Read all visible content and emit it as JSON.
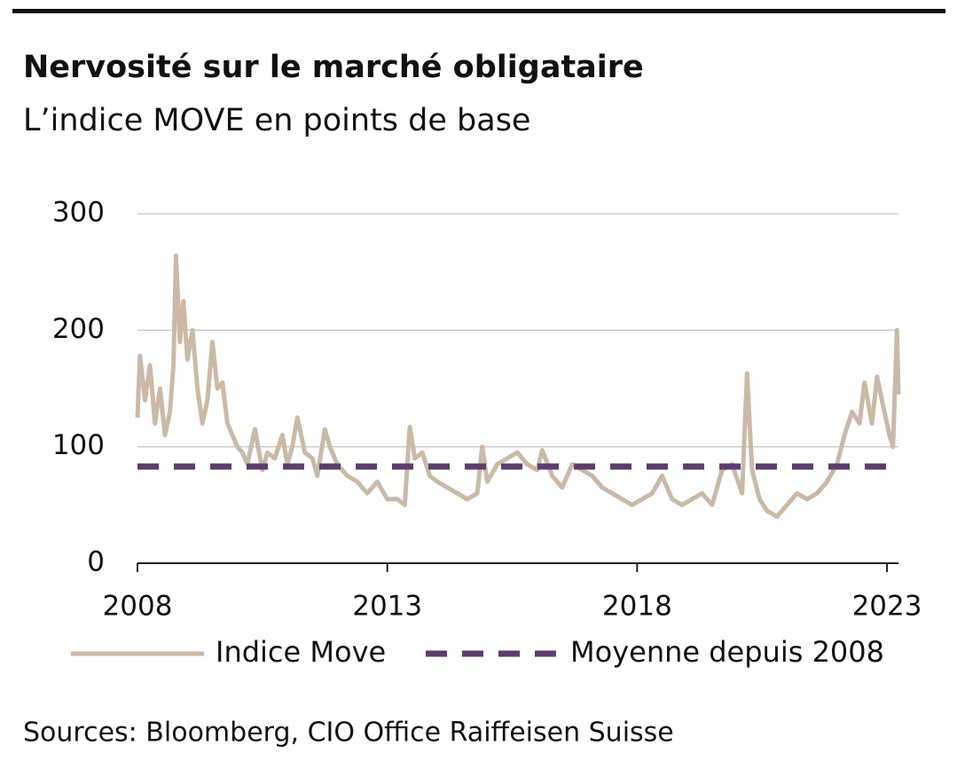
{
  "chart_data": {
    "type": "line",
    "title": "Nervosité sur le marché obligataire",
    "subtitle": "L’indice MOVE en points de base",
    "source": "Sources: Bloomberg, CIO Office Raiffeisen Suisse",
    "x": [
      2008.0,
      2008.05,
      2008.15,
      2008.25,
      2008.35,
      2008.45,
      2008.55,
      2008.65,
      2008.72,
      2008.77,
      2008.85,
      2008.92,
      2009.0,
      2009.1,
      2009.2,
      2009.3,
      2009.4,
      2009.5,
      2009.6,
      2009.7,
      2009.8,
      2009.9,
      2010.0,
      2010.1,
      2010.2,
      2010.35,
      2010.5,
      2010.6,
      2010.75,
      2010.9,
      2011.0,
      2011.1,
      2011.2,
      2011.35,
      2011.5,
      2011.6,
      2011.75,
      2011.85,
      2012.0,
      2012.2,
      2012.4,
      2012.6,
      2012.8,
      2013.0,
      2013.2,
      2013.35,
      2013.45,
      2013.55,
      2013.7,
      2013.85,
      2014.0,
      2014.2,
      2014.4,
      2014.6,
      2014.8,
      2014.9,
      2015.0,
      2015.2,
      2015.4,
      2015.6,
      2015.8,
      2016.0,
      2016.1,
      2016.3,
      2016.5,
      2016.7,
      2016.9,
      2017.1,
      2017.3,
      2017.5,
      2017.7,
      2017.9,
      2018.1,
      2018.3,
      2018.5,
      2018.7,
      2018.9,
      2019.1,
      2019.3,
      2019.5,
      2019.7,
      2019.9,
      2020.1,
      2020.2,
      2020.3,
      2020.45,
      2020.6,
      2020.8,
      2021.0,
      2021.2,
      2021.4,
      2021.6,
      2021.8,
      2022.0,
      2022.15,
      2022.3,
      2022.45,
      2022.55,
      2022.7,
      2022.8,
      2022.95,
      2023.05,
      2023.12,
      2023.2,
      2023.23
    ],
    "series": [
      {
        "name": "Indice Move",
        "color": "#cbb9a6",
        "style": "solid",
        "values": [
          125,
          178,
          140,
          170,
          120,
          150,
          110,
          130,
          170,
          264,
          190,
          225,
          175,
          200,
          150,
          120,
          140,
          190,
          150,
          155,
          120,
          110,
          100,
          95,
          85,
          115,
          80,
          95,
          90,
          110,
          85,
          100,
          125,
          95,
          90,
          75,
          115,
          100,
          85,
          75,
          70,
          60,
          70,
          55,
          55,
          50,
          117,
          90,
          95,
          75,
          70,
          65,
          60,
          55,
          60,
          100,
          70,
          85,
          90,
          95,
          85,
          80,
          97,
          75,
          65,
          85,
          80,
          75,
          65,
          60,
          55,
          50,
          55,
          60,
          75,
          55,
          50,
          55,
          60,
          50,
          80,
          85,
          60,
          163,
          80,
          55,
          45,
          40,
          50,
          60,
          55,
          60,
          70,
          85,
          110,
          130,
          120,
          155,
          120,
          160,
          130,
          110,
          100,
          200,
          145
        ]
      },
      {
        "name": "Moyenne depuis 2008",
        "color": "#5c3d6e",
        "style": "dashed",
        "x": [
          2008.0,
          2023.23
        ],
        "values": [
          83,
          83
        ]
      }
    ],
    "xlim": [
      2008,
      2023.23
    ],
    "xticks": [
      2008,
      2013,
      2018,
      2023
    ],
    "ylim": [
      0,
      300
    ],
    "yticks": [
      0,
      100,
      200,
      300
    ],
    "grid": true,
    "legend": "bottom"
  }
}
